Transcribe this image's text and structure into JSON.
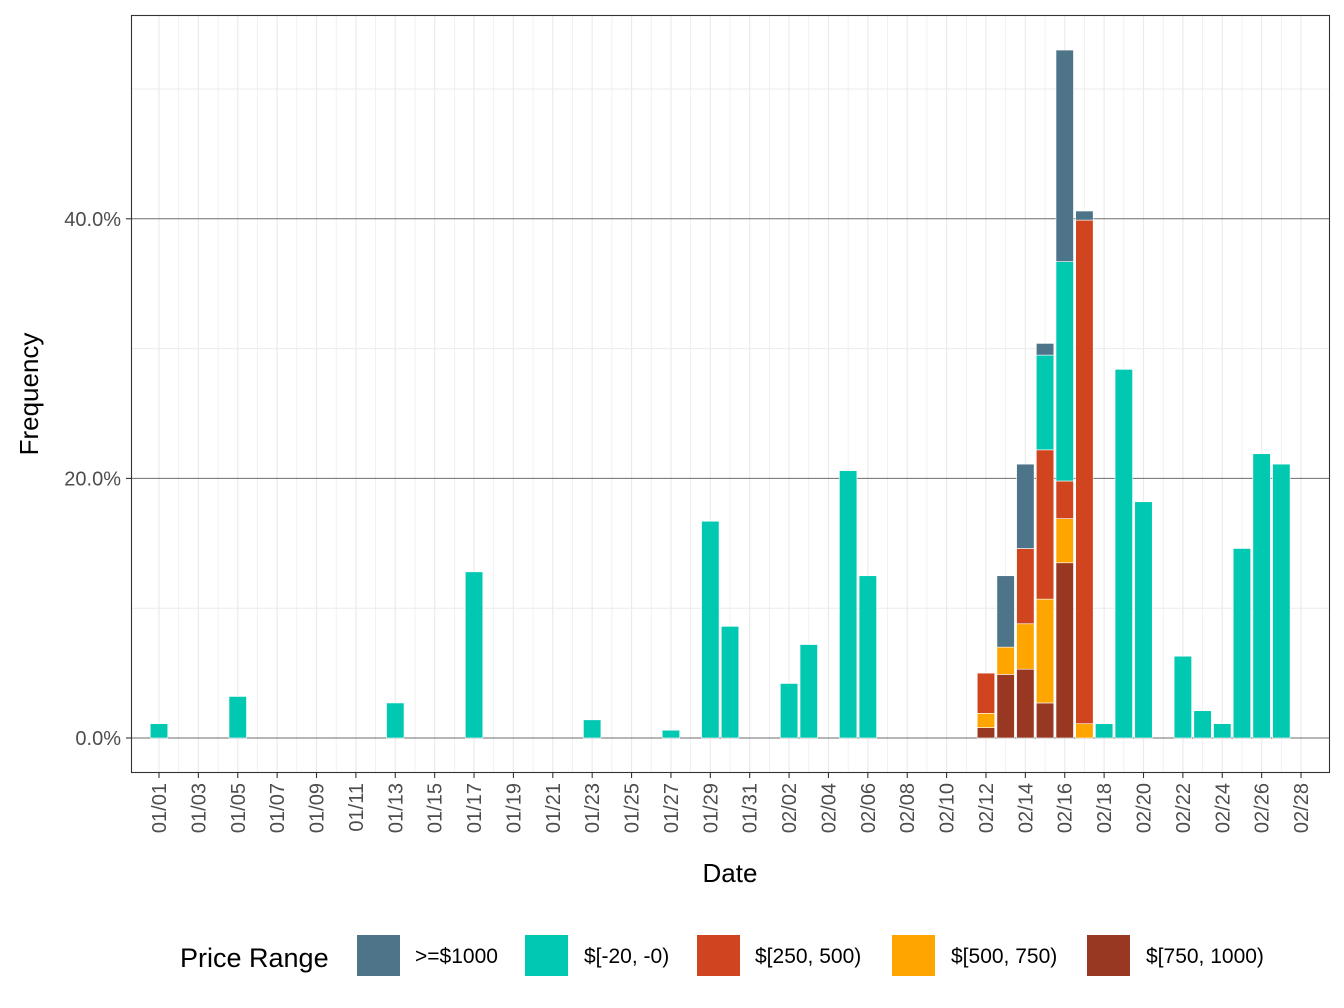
{
  "chart_data": {
    "type": "bar",
    "stacked": true,
    "title": "",
    "xlabel": "Date",
    "ylabel": "Frequency",
    "ylim": [
      -2.6,
      53.5
    ],
    "y_ticks": [
      0,
      20,
      40
    ],
    "y_tick_labels": [
      "0.0%",
      "20.0%",
      "40.0%"
    ],
    "y_minor_ticks": [
      10,
      30,
      50
    ],
    "grid": true,
    "legend": {
      "title": "Price Range",
      "position": "bottom"
    },
    "categories": [
      "01/01",
      "01/02",
      "01/03",
      "01/04",
      "01/05",
      "01/06",
      "01/07",
      "01/08",
      "01/09",
      "01/10",
      "01/11",
      "01/12",
      "01/13",
      "01/14",
      "01/15",
      "01/16",
      "01/17",
      "01/18",
      "01/19",
      "01/20",
      "01/21",
      "01/22",
      "01/23",
      "01/24",
      "01/25",
      "01/26",
      "01/27",
      "01/28",
      "01/29",
      "01/30",
      "01/31",
      "02/01",
      "02/02",
      "02/03",
      "02/04",
      "02/05",
      "02/06",
      "02/07",
      "02/08",
      "02/09",
      "02/10",
      "02/11",
      "02/12",
      "02/13",
      "02/14",
      "02/15",
      "02/16",
      "02/17",
      "02/18",
      "02/19",
      "02/20",
      "02/21",
      "02/22",
      "02/23",
      "02/24",
      "02/25",
      "02/26",
      "02/27",
      "02/28"
    ],
    "x_tick_labels": [
      "01/01",
      "01/03",
      "01/05",
      "01/07",
      "01/09",
      "01/11",
      "01/13",
      "01/15",
      "01/17",
      "01/19",
      "01/21",
      "01/23",
      "01/25",
      "01/27",
      "01/29",
      "01/31",
      "02/02",
      "02/04",
      "02/06",
      "02/08",
      "02/10",
      "02/12",
      "02/14",
      "02/16",
      "02/18",
      "02/20",
      "02/22",
      "02/24",
      "02/26",
      "02/28"
    ],
    "series": [
      {
        "name": "$[750, 1000)",
        "color": "#993822",
        "points": [
          [
            "02/12",
            0.8
          ],
          [
            "02/13",
            4.9
          ],
          [
            "02/14",
            5.3
          ],
          [
            "02/15",
            2.7
          ],
          [
            "02/16",
            13.5
          ]
        ]
      },
      {
        "name": "$[500, 750)",
        "color": "#FFA500",
        "points": [
          [
            "02/12",
            1.1
          ],
          [
            "02/13",
            2.1
          ],
          [
            "02/14",
            3.5
          ],
          [
            "02/15",
            8.0
          ],
          [
            "02/16",
            3.4
          ],
          [
            "02/17",
            1.1
          ]
        ]
      },
      {
        "name": "$[250, 500)",
        "color": "#D0451F",
        "points": [
          [
            "02/12",
            3.1
          ],
          [
            "02/14",
            5.8
          ],
          [
            "02/15",
            11.5
          ],
          [
            "02/16",
            2.9
          ],
          [
            "02/17",
            38.8
          ]
        ]
      },
      {
        "name": "$[-20, -0)",
        "color": "#00C8B1",
        "points": [
          [
            "01/01",
            1.1
          ],
          [
            "01/05",
            3.2
          ],
          [
            "01/13",
            2.7
          ],
          [
            "01/17",
            12.8
          ],
          [
            "01/23",
            1.4
          ],
          [
            "01/27",
            0.6
          ],
          [
            "01/29",
            16.7
          ],
          [
            "01/30",
            8.6
          ],
          [
            "02/02",
            4.2
          ],
          [
            "02/03",
            7.2
          ],
          [
            "02/05",
            20.6
          ],
          [
            "02/06",
            12.5
          ],
          [
            "02/15",
            7.3
          ],
          [
            "02/16",
            16.9
          ],
          [
            "02/18",
            1.1
          ],
          [
            "02/19",
            28.4
          ],
          [
            "02/20",
            18.2
          ],
          [
            "02/22",
            6.3
          ],
          [
            "02/23",
            2.1
          ],
          [
            "02/24",
            1.1
          ],
          [
            "02/25",
            14.6
          ],
          [
            "02/26",
            21.9
          ],
          [
            "02/27",
            21.1
          ]
        ]
      },
      {
        "name": ">=$1000",
        "color": "#4E7489",
        "points": [
          [
            "02/13",
            5.5
          ],
          [
            "02/14",
            6.5
          ],
          [
            "02/15",
            0.9
          ],
          [
            "02/16",
            16.3
          ],
          [
            "02/17",
            0.7
          ]
        ]
      }
    ],
    "legend_order": [
      ">=$1000",
      "$[-20, -0)",
      "$[250, 500)",
      "$[500, 750)",
      "$[750, 1000)"
    ]
  }
}
